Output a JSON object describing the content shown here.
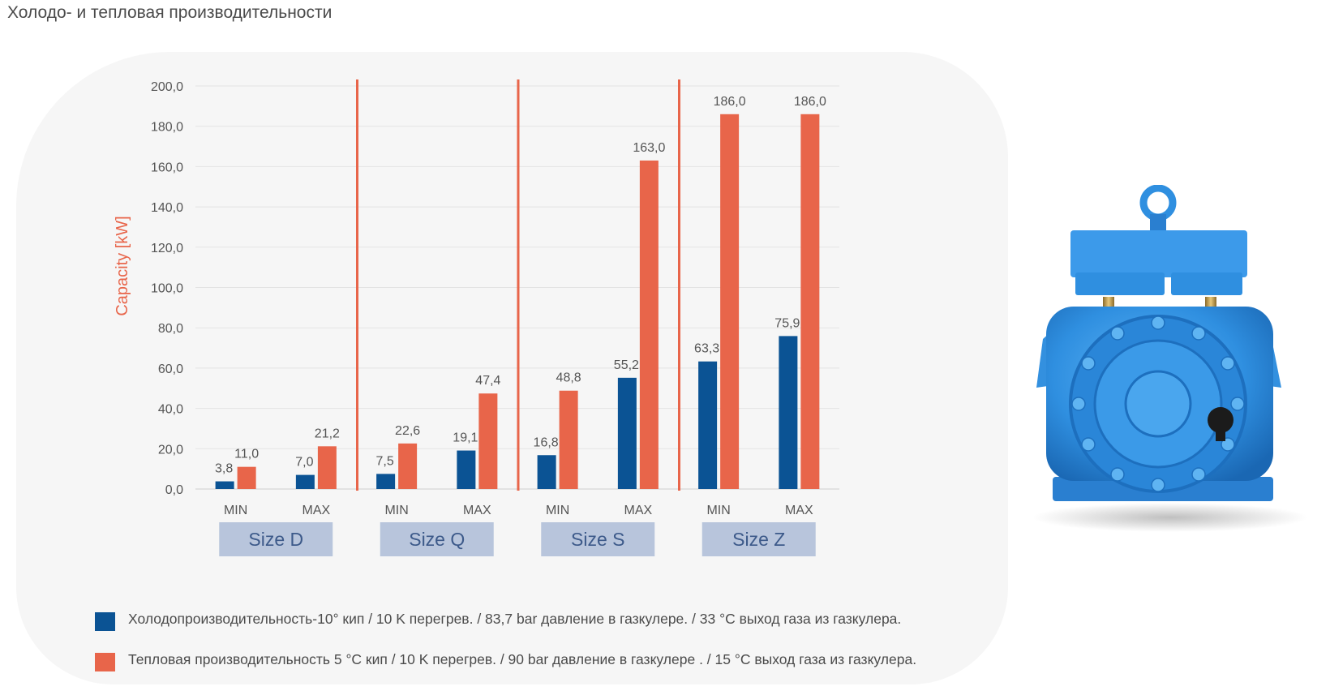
{
  "page": {
    "title": "Холодо- и тепловая производительности"
  },
  "colors": {
    "cooling": "#0b5394",
    "heating": "#e8654a",
    "separator": "#e8654a",
    "size_box": "#b8c5dc",
    "axis_label": "#e8654a",
    "tick_text": "#555555",
    "grid": "#e3e3e3",
    "product_body": "#2f8fe0"
  },
  "chart_data": {
    "type": "bar",
    "title": "",
    "xlabel": "",
    "ylabel": "Capacity [kW]",
    "ylim": [
      0,
      200
    ],
    "yticks": [
      "0,0",
      "20,0",
      "40,0",
      "60,0",
      "80,0",
      "100,0",
      "120,0",
      "140,0",
      "160,0",
      "180,0",
      "200,0"
    ],
    "categories": [
      "MIN",
      "MAX",
      "MIN",
      "MAX",
      "MIN",
      "MAX",
      "MIN",
      "MAX"
    ],
    "groups": [
      "Size D",
      "Size Q",
      "Size S",
      "Size Z"
    ],
    "series": [
      {
        "name": "Холодопроизводительность-10° кип / 10 K перегрев. / 83,7 bar давление в газкулере. / 33 °C выход газа из газкулера.",
        "color_key": "cooling",
        "values": [
          3.8,
          7.0,
          7.5,
          19.1,
          16.8,
          55.2,
          63.3,
          75.9
        ],
        "labels": [
          "3,8",
          "7,0",
          "7,5",
          "19,1",
          "16,8",
          "55,2",
          "63,3",
          "75,9"
        ]
      },
      {
        "name": "Тепловая производительность  5 °C кип / 10 K перегрев. / 90 bar давление в газкулере . / 15 °C выход газа из газкулера.",
        "color_key": "heating",
        "values": [
          11.0,
          21.2,
          22.6,
          47.4,
          48.8,
          163.0,
          186.0,
          186.0
        ],
        "labels": [
          "11,0",
          "21,2",
          "22,6",
          "47,4",
          "48,8",
          "163,0",
          "186,0",
          "186,0"
        ]
      }
    ],
    "legend_position": "bottom"
  },
  "legend": {
    "cooling_text": "Холодопроизводительность-10° кип / 10 K перегрев. / 83,7 bar давление в газкулере. / 33 °C выход газа из газкулера.",
    "heating_text": "Тепловая производительность  5 °C кип / 10 K перегрев. / 90 bar давление в газкулере . / 15 °C выход газа из газкулера."
  },
  "product": {
    "icon": "compressor-icon"
  }
}
